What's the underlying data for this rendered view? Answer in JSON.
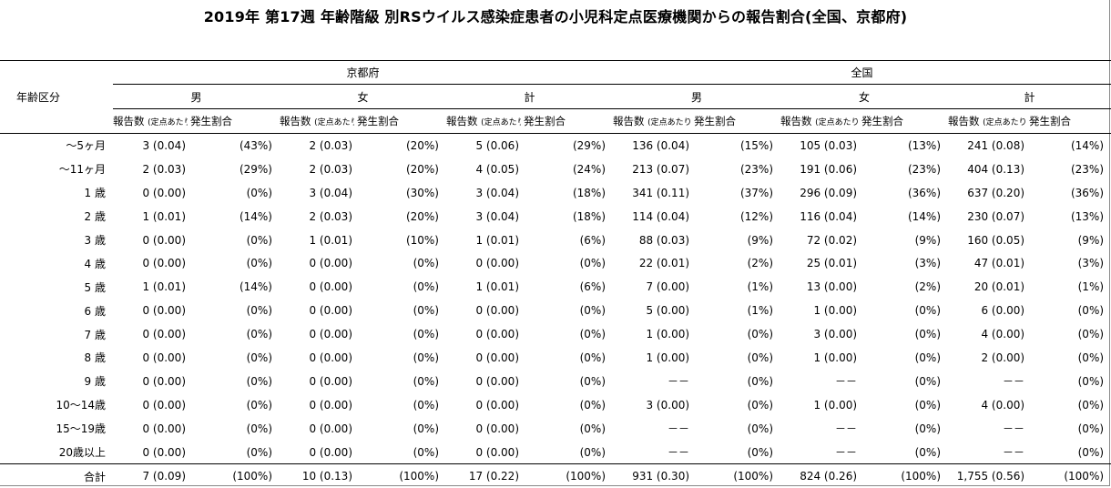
{
  "title": "2019年 第17週 年齢階級 別RSウイルス感染症患者の小児科定点医療機関からの報告割合(全国、京都府)",
  "header": {
    "age_label": "年齢区分",
    "regions": [
      "京都府",
      "全国"
    ],
    "sexes": [
      "男",
      "女",
      "計"
    ],
    "count_label": "報告数",
    "per_site_label": "(定点あたり)",
    "ratio_label": "発生割合"
  },
  "rows": [
    {
      "age": "～5ヶ月",
      "cells": [
        [
          "3 (0.04)",
          "(43%)"
        ],
        [
          "2 (0.03)",
          "(20%)"
        ],
        [
          "5 (0.06)",
          "(29%)"
        ],
        [
          "136 (0.04)",
          "(15%)"
        ],
        [
          "105 (0.03)",
          "(13%)"
        ],
        [
          "241 (0.08)",
          "(14%)"
        ]
      ]
    },
    {
      "age": "～11ヶ月",
      "cells": [
        [
          "2 (0.03)",
          "(29%)"
        ],
        [
          "2 (0.03)",
          "(20%)"
        ],
        [
          "4 (0.05)",
          "(24%)"
        ],
        [
          "213 (0.07)",
          "(23%)"
        ],
        [
          "191 (0.06)",
          "(23%)"
        ],
        [
          "404 (0.13)",
          "(23%)"
        ]
      ]
    },
    {
      "age": "1 歳",
      "cells": [
        [
          "0 (0.00)",
          "(0%)"
        ],
        [
          "3 (0.04)",
          "(30%)"
        ],
        [
          "3 (0.04)",
          "(18%)"
        ],
        [
          "341 (0.11)",
          "(37%)"
        ],
        [
          "296 (0.09)",
          "(36%)"
        ],
        [
          "637 (0.20)",
          "(36%)"
        ]
      ]
    },
    {
      "age": "2 歳",
      "cells": [
        [
          "1 (0.01)",
          "(14%)"
        ],
        [
          "2 (0.03)",
          "(20%)"
        ],
        [
          "3 (0.04)",
          "(18%)"
        ],
        [
          "114 (0.04)",
          "(12%)"
        ],
        [
          "116 (0.04)",
          "(14%)"
        ],
        [
          "230 (0.07)",
          "(13%)"
        ]
      ]
    },
    {
      "age": "3 歳",
      "cells": [
        [
          "0 (0.00)",
          "(0%)"
        ],
        [
          "1 (0.01)",
          "(10%)"
        ],
        [
          "1 (0.01)",
          "(6%)"
        ],
        [
          "88 (0.03)",
          "(9%)"
        ],
        [
          "72 (0.02)",
          "(9%)"
        ],
        [
          "160 (0.05)",
          "(9%)"
        ]
      ]
    },
    {
      "age": "4 歳",
      "cells": [
        [
          "0 (0.00)",
          "(0%)"
        ],
        [
          "0 (0.00)",
          "(0%)"
        ],
        [
          "0 (0.00)",
          "(0%)"
        ],
        [
          "22 (0.01)",
          "(2%)"
        ],
        [
          "25 (0.01)",
          "(3%)"
        ],
        [
          "47 (0.01)",
          "(3%)"
        ]
      ]
    },
    {
      "age": "5 歳",
      "cells": [
        [
          "1 (0.01)",
          "(14%)"
        ],
        [
          "0 (0.00)",
          "(0%)"
        ],
        [
          "1 (0.01)",
          "(6%)"
        ],
        [
          "7 (0.00)",
          "(1%)"
        ],
        [
          "13 (0.00)",
          "(2%)"
        ],
        [
          "20 (0.01)",
          "(1%)"
        ]
      ]
    },
    {
      "age": "6 歳",
      "cells": [
        [
          "0 (0.00)",
          "(0%)"
        ],
        [
          "0 (0.00)",
          "(0%)"
        ],
        [
          "0 (0.00)",
          "(0%)"
        ],
        [
          "5 (0.00)",
          "(1%)"
        ],
        [
          "1 (0.00)",
          "(0%)"
        ],
        [
          "6 (0.00)",
          "(0%)"
        ]
      ]
    },
    {
      "age": "7 歳",
      "cells": [
        [
          "0 (0.00)",
          "(0%)"
        ],
        [
          "0 (0.00)",
          "(0%)"
        ],
        [
          "0 (0.00)",
          "(0%)"
        ],
        [
          "1 (0.00)",
          "(0%)"
        ],
        [
          "3 (0.00)",
          "(0%)"
        ],
        [
          "4 (0.00)",
          "(0%)"
        ]
      ]
    },
    {
      "age": "8 歳",
      "cells": [
        [
          "0 (0.00)",
          "(0%)"
        ],
        [
          "0 (0.00)",
          "(0%)"
        ],
        [
          "0 (0.00)",
          "(0%)"
        ],
        [
          "1 (0.00)",
          "(0%)"
        ],
        [
          "1 (0.00)",
          "(0%)"
        ],
        [
          "2 (0.00)",
          "(0%)"
        ]
      ]
    },
    {
      "age": "9 歳",
      "cells": [
        [
          "0 (0.00)",
          "(0%)"
        ],
        [
          "0 (0.00)",
          "(0%)"
        ],
        [
          "0 (0.00)",
          "(0%)"
        ],
        [
          "－－",
          "(0%)"
        ],
        [
          "－－",
          "(0%)"
        ],
        [
          "－－",
          "(0%)"
        ]
      ]
    },
    {
      "age": "10～14歳",
      "cells": [
        [
          "0 (0.00)",
          "(0%)"
        ],
        [
          "0 (0.00)",
          "(0%)"
        ],
        [
          "0 (0.00)",
          "(0%)"
        ],
        [
          "3 (0.00)",
          "(0%)"
        ],
        [
          "1 (0.00)",
          "(0%)"
        ],
        [
          "4 (0.00)",
          "(0%)"
        ]
      ]
    },
    {
      "age": "15～19歳",
      "cells": [
        [
          "0 (0.00)",
          "(0%)"
        ],
        [
          "0 (0.00)",
          "(0%)"
        ],
        [
          "0 (0.00)",
          "(0%)"
        ],
        [
          "－－",
          "(0%)"
        ],
        [
          "－－",
          "(0%)"
        ],
        [
          "－－",
          "(0%)"
        ]
      ]
    },
    {
      "age": "20歳以上",
      "cells": [
        [
          "0 (0.00)",
          "(0%)"
        ],
        [
          "0 (0.00)",
          "(0%)"
        ],
        [
          "0 (0.00)",
          "(0%)"
        ],
        [
          "－－",
          "(0%)"
        ],
        [
          "－－",
          "(0%)"
        ],
        [
          "－－",
          "(0%)"
        ]
      ]
    }
  ],
  "total": {
    "age": "合計",
    "cells": [
      [
        "7 (0.09)",
        "(100%)"
      ],
      [
        "10 (0.13)",
        "(100%)"
      ],
      [
        "17 (0.22)",
        "(100%)"
      ],
      [
        "931 (0.30)",
        "(100%)"
      ],
      [
        "824 (0.26)",
        "(100%)"
      ],
      [
        "1,755 (0.56)",
        "(100%)"
      ]
    ]
  }
}
